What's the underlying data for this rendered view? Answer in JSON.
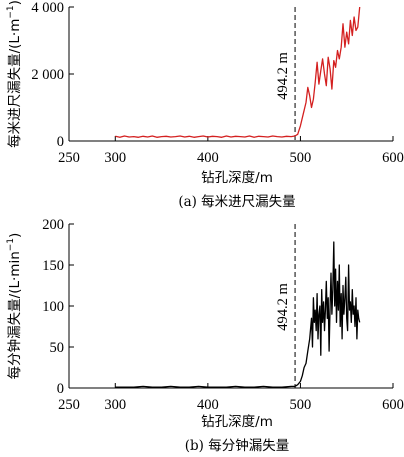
{
  "chart_data": [
    {
      "type": "line",
      "panel": "a",
      "caption": "(a) 每米进尺漏失量",
      "xlabel": "钻孔深度/m",
      "ylabel_main": "每米进尺漏失量/(L·m",
      "ylabel_sup": "−1",
      "ylabel_close": ")",
      "xlim": [
        250,
        600
      ],
      "ylim": [
        0,
        4000
      ],
      "xticks": [
        250,
        300,
        400,
        500,
        600
      ],
      "xtick_labels": [
        "250",
        "300",
        "400",
        "500",
        "600"
      ],
      "yticks": [
        0,
        2000,
        4000
      ],
      "ytick_labels": [
        "0",
        "2 000",
        "4 000"
      ],
      "grid": false,
      "line_color": "#d42020",
      "annotation": {
        "x": 494.2,
        "label": "494.2 m",
        "style": "dashed"
      },
      "series": [
        {
          "x": [
            300,
            305,
            310,
            315,
            320,
            325,
            330,
            335,
            340,
            345,
            350,
            355,
            360,
            365,
            370,
            375,
            380,
            385,
            390,
            395,
            400,
            405,
            410,
            415,
            420,
            425,
            430,
            435,
            440,
            445,
            450,
            455,
            460,
            465,
            470,
            475,
            480,
            485,
            490,
            494,
            497,
            500,
            503,
            506,
            508,
            510,
            512,
            514,
            516,
            518,
            520,
            522,
            524,
            526,
            528,
            530,
            532,
            534,
            536,
            538,
            540,
            542,
            544,
            546,
            548,
            550,
            552,
            554,
            556,
            558,
            560,
            562,
            564
          ],
          "values": [
            140,
            110,
            150,
            120,
            130,
            110,
            140,
            120,
            150,
            110,
            130,
            140,
            120,
            130,
            150,
            120,
            140,
            110,
            130,
            150,
            120,
            140,
            130,
            110,
            150,
            120,
            140,
            130,
            120,
            150,
            110,
            140,
            130,
            120,
            150,
            130,
            120,
            140,
            130,
            150,
            200,
            450,
            800,
            1150,
            1600,
            1350,
            1000,
            1250,
            1750,
            2350,
            1700,
            2100,
            2450,
            2000,
            1650,
            2500,
            2150,
            1550,
            2400,
            2200,
            2700,
            2450,
            2800,
            3500,
            2800,
            3250,
            2900,
            3600,
            3150,
            3700,
            3300,
            3400,
            4000
          ]
        }
      ]
    },
    {
      "type": "line",
      "panel": "b",
      "caption": "(b) 每分钟漏失量",
      "xlabel": "钻孔深度/m",
      "ylabel_main": "每分钟漏失量/(L·min",
      "ylabel_sup": "−1",
      "ylabel_close": ")",
      "xlim": [
        250,
        600
      ],
      "ylim": [
        0,
        200
      ],
      "xticks": [
        250,
        300,
        400,
        500,
        600
      ],
      "xtick_labels": [
        "250",
        "300",
        "400",
        "500",
        "600"
      ],
      "yticks": [
        0,
        50,
        100,
        150,
        200
      ],
      "ytick_labels": [
        "0",
        "50",
        "100",
        "150",
        "200"
      ],
      "grid": false,
      "line_color": "#000000",
      "annotation": {
        "x": 494.2,
        "label": "494.2 m",
        "style": "dashed"
      },
      "series": [
        {
          "x": [
            300,
            310,
            320,
            330,
            340,
            350,
            360,
            370,
            380,
            390,
            400,
            410,
            420,
            430,
            440,
            450,
            460,
            470,
            480,
            490,
            494,
            497,
            500,
            502,
            504,
            506,
            508,
            510,
            512,
            513,
            514,
            515,
            516,
            517,
            518,
            519,
            520,
            521,
            522,
            523,
            524,
            525,
            526,
            527,
            528,
            529,
            530,
            531,
            532,
            533,
            534,
            535,
            536,
            537,
            538,
            539,
            540,
            541,
            542,
            543,
            544,
            545,
            546,
            547,
            548,
            549,
            550,
            551,
            552,
            553,
            554,
            555,
            556,
            557,
            558,
            559,
            560,
            561,
            562,
            563,
            564
          ],
          "values": [
            1,
            1,
            1,
            2,
            1,
            1,
            2,
            1,
            1,
            2,
            1,
            1,
            1,
            2,
            1,
            1,
            2,
            1,
            1,
            2,
            2,
            4,
            8,
            15,
            25,
            30,
            45,
            60,
            85,
            50,
            110,
            80,
            95,
            70,
            115,
            60,
            90,
            100,
            40,
            120,
            80,
            105,
            70,
            95,
            130,
            85,
            110,
            45,
            100,
            140,
            90,
            120,
            178,
            100,
            145,
            80,
            130,
            95,
            150,
            75,
            115,
            60,
            125,
            90,
            110,
            135,
            85,
            70,
            150,
            95,
            105,
            80,
            120,
            90,
            100,
            75,
            110,
            60,
            95,
            85,
            80
          ]
        }
      ]
    }
  ]
}
